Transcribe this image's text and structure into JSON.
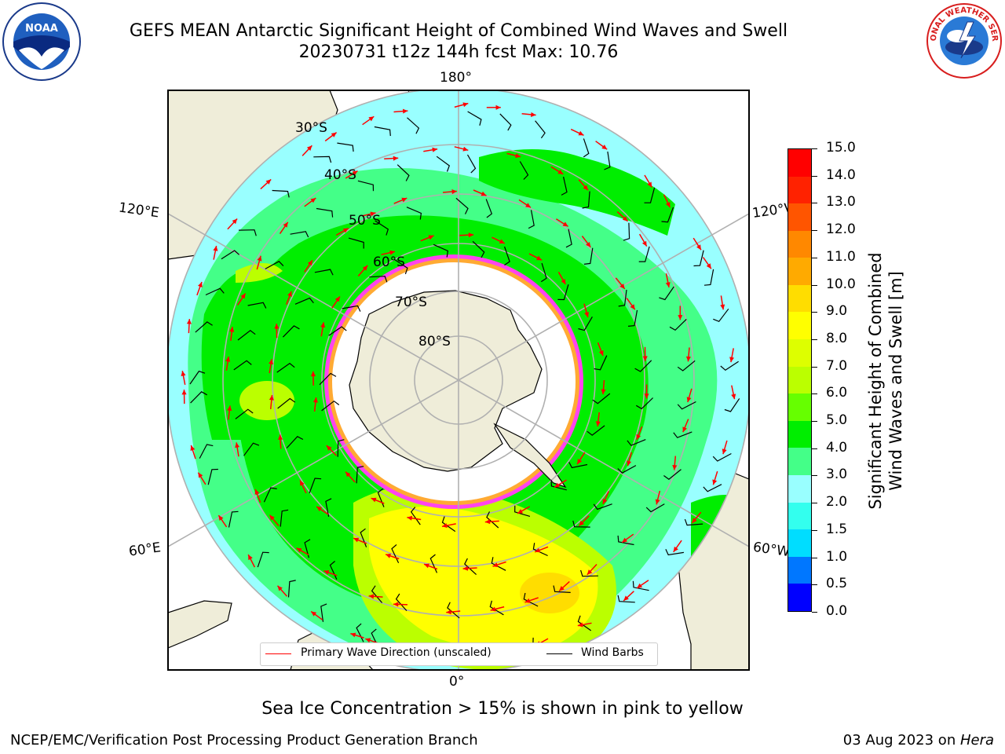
{
  "title": {
    "line1": "GEFS MEAN Antarctic Significant Height of Combined Wind Waves and Swell",
    "line2": "20230731 t12z 144h fcst   Max: 10.76"
  },
  "logos": {
    "left": {
      "icon": "noaa-logo",
      "text": "NOAA"
    },
    "right": {
      "icon": "national-weather-service-logo",
      "text": "NATIONAL WEATHER SERVICE"
    }
  },
  "map": {
    "projection": "south-polar-stereographic",
    "longitude_labels": {
      "top": "180°",
      "bottom": "0°",
      "upper_left": "120°E",
      "upper_right": "120°W",
      "lower_left": "60°E",
      "lower_right": "60°W"
    },
    "latitude_labels": [
      "30°S",
      "40°S",
      "50°S",
      "60°S",
      "70°S",
      "80°S"
    ],
    "colors": {
      "land": "#efedd9",
      "ice_edge": "#ff44ee",
      "ice_edge_inner": "#ffaa33",
      "grid": "#b0b0b0",
      "arrow": "#ff0000",
      "barb": "#000000"
    }
  },
  "colorbar": {
    "title_line1": "Significant Height of Combined",
    "title_line2": "Wind Waves and Swell [m]",
    "ticks": [
      "0.0",
      "0.5",
      "1.0",
      "1.5",
      "2.0",
      "3.0",
      "4.0",
      "5.0",
      "6.0",
      "7.0",
      "8.0",
      "9.0",
      "10.0",
      "11.0",
      "12.0",
      "13.0",
      "14.0",
      "15.0"
    ],
    "colors": [
      "#0000ff",
      "#0077ff",
      "#00ddff",
      "#33ffee",
      "#99ffff",
      "#44ff88",
      "#00ee00",
      "#66ff00",
      "#bbff00",
      "#ddff00",
      "#ffff00",
      "#ffdd00",
      "#ffaa00",
      "#ff8800",
      "#ff5500",
      "#ff2200",
      "#ff0000"
    ]
  },
  "legend": {
    "wave_label": "Primary Wave Direction (unscaled)",
    "wave_color": "#ff0000",
    "barb_label": "Wind Barbs",
    "barb_color": "#000000"
  },
  "footer": {
    "note": "Sea Ice Concentration > 15% is shown in pink to yellow",
    "credit": "NCEP/EMC/Verification Post Processing Product Generation Branch",
    "date": "03 Aug 2023 on ",
    "machine": "Hera"
  }
}
